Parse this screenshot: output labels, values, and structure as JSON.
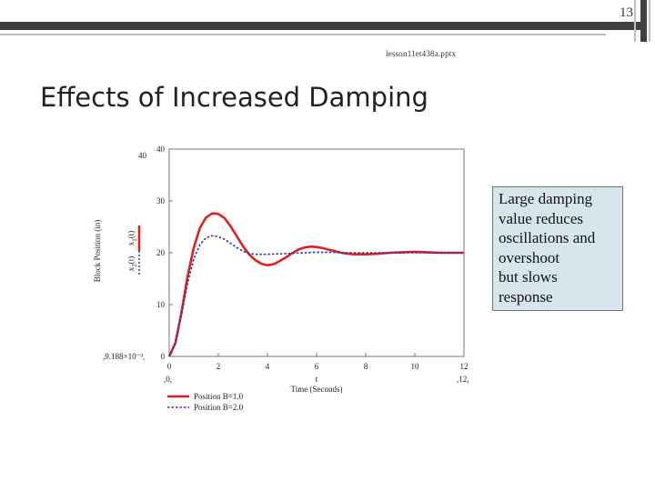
{
  "slide": {
    "number": "13",
    "filename": "lesson11et438a.pptx",
    "title": "Effects of Increased Damping"
  },
  "note": {
    "lines": [
      "Large damping",
      "value reduces",
      "oscillations and",
      "overshoot",
      "but slows",
      "response"
    ]
  },
  "chart_data": {
    "type": "line",
    "xlabel": "Time (Seconds)",
    "x_var": "t",
    "ylabel": "Block Position (in)",
    "xlim": [
      0,
      12
    ],
    "ylim": [
      0,
      40
    ],
    "x_ticks": [
      "0",
      "2",
      "4",
      "6",
      "8",
      "10",
      "12"
    ],
    "y_ticks": [
      "0",
      "10",
      "20",
      "30",
      "40"
    ],
    "x_range_labels": [
      ",0,",
      ",12,"
    ],
    "y_range_labels": [
      ",9.188×10⁻³,",
      "40"
    ],
    "ylabel_series": [
      {
        "base": "x",
        "sub": "1",
        "arg": "(t)"
      },
      {
        "base": "x",
        "sub": "2",
        "arg": "(t)"
      }
    ],
    "grid": false,
    "legend_position": "bottom-left",
    "series": [
      {
        "name": "Position B=1.0",
        "color": "#e02020",
        "style": "solid",
        "x": [
          0,
          0.25,
          0.5,
          0.75,
          1.0,
          1.25,
          1.5,
          1.75,
          2.0,
          2.25,
          2.5,
          2.75,
          3.0,
          3.25,
          3.5,
          3.75,
          4.0,
          4.25,
          4.5,
          4.75,
          5.0,
          5.25,
          5.5,
          5.75,
          6.0,
          6.25,
          6.5,
          6.75,
          7.0,
          7.5,
          8.0,
          8.5,
          9.0,
          9.5,
          10.0,
          10.5,
          11.0,
          11.5,
          12.0
        ],
        "y": [
          0,
          2.6,
          8.5,
          15.5,
          21.0,
          24.8,
          26.8,
          27.6,
          27.5,
          26.7,
          25.1,
          23.2,
          21.3,
          19.7,
          18.6,
          17.9,
          17.6,
          17.8,
          18.4,
          19.1,
          19.9,
          20.6,
          21.0,
          21.2,
          21.1,
          20.9,
          20.6,
          20.3,
          20.0,
          19.7,
          19.7,
          19.8,
          20.0,
          20.1,
          20.2,
          20.1,
          20.0,
          20.0,
          20.0
        ]
      },
      {
        "name": "Position B=2.0",
        "color": "#2a3aa0",
        "style": "dotted",
        "x": [
          0,
          0.25,
          0.5,
          0.75,
          1.0,
          1.25,
          1.5,
          1.75,
          2.0,
          2.25,
          2.5,
          2.75,
          3.0,
          3.25,
          3.5,
          3.75,
          4.0,
          4.5,
          5.0,
          5.5,
          6.0,
          6.5,
          7.0,
          7.5,
          8.0,
          9.0,
          10.0,
          11.0,
          12.0
        ],
        "y": [
          0,
          2.5,
          8.0,
          14.2,
          18.8,
          21.6,
          22.9,
          23.3,
          23.1,
          22.6,
          21.8,
          21.0,
          20.3,
          19.9,
          19.7,
          19.7,
          19.7,
          19.8,
          19.9,
          20.0,
          20.1,
          20.1,
          20.0,
          20.0,
          20.0,
          20.0,
          20.0,
          20.0,
          20.0
        ]
      }
    ]
  }
}
